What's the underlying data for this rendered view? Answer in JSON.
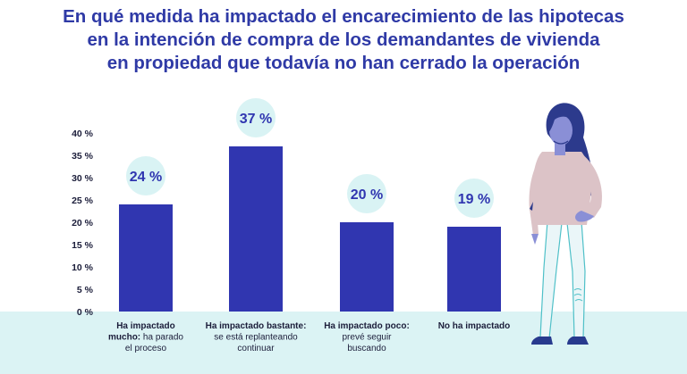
{
  "title_lines": [
    "En qué medida ha impactado el encarecimiento de las hipotecas",
    "en la intención de compra de los demandantes de vivienda",
    "en propiedad que todavía no han cerrado la operación"
  ],
  "chart_data": {
    "type": "bar",
    "categories": [
      {
        "bold": "Ha impactado mucho:",
        "lines": [
          "Ha impactado",
          "mucho: ha parado",
          "el proceso"
        ]
      },
      {
        "bold": "Ha impactado bastante:",
        "lines": [
          "Ha impactado bastante:",
          "se está replanteando",
          "continuar"
        ]
      },
      {
        "bold": "Ha impactado poco:",
        "lines": [
          "Ha impactado poco:",
          "prevé seguir",
          "buscando"
        ]
      },
      {
        "bold": "No ha impactado",
        "lines": [
          "No ha impactado"
        ]
      }
    ],
    "values": [
      24,
      37,
      20,
      19
    ],
    "value_labels": [
      "24 %",
      "37 %",
      "20 %",
      "19 %"
    ],
    "yticks": [
      "0 %",
      "5 %",
      "10 %",
      "15 %",
      "20 %",
      "25 %",
      "30 %",
      "35 %",
      "40 %"
    ],
    "ylim": [
      0,
      40
    ],
    "grid": false,
    "colors": {
      "bar": "#3036b0",
      "bubble": "#d9f3f4",
      "text": "#1b1d3a",
      "title": "#2f3aa6"
    }
  },
  "illustration": {
    "name": "woman-illustration"
  }
}
